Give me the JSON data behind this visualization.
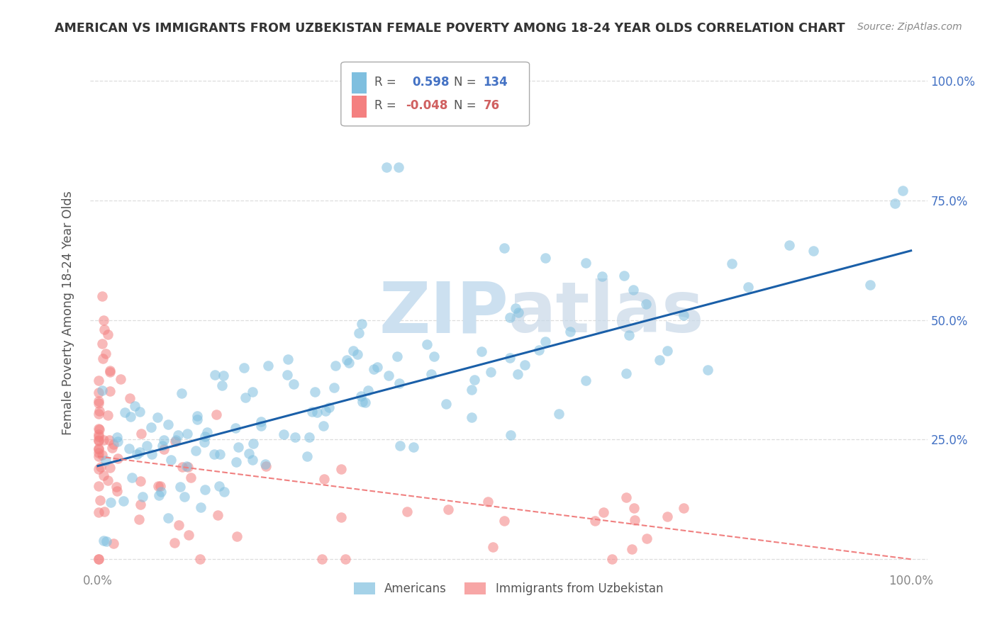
{
  "title": "AMERICAN VS IMMIGRANTS FROM UZBEKISTAN FEMALE POVERTY AMONG 18-24 YEAR OLDS CORRELATION CHART",
  "source": "Source: ZipAtlas.com",
  "ylabel": "Female Poverty Among 18-24 Year Olds",
  "xlim": [
    -0.01,
    1.02
  ],
  "ylim": [
    -0.02,
    1.05
  ],
  "xtick_vals": [
    0.0,
    0.25,
    0.5,
    0.75,
    1.0
  ],
  "xticklabels": [
    "0.0%",
    "",
    "",
    "",
    "100.0%"
  ],
  "ytick_vals": [
    0.0,
    0.25,
    0.5,
    0.75,
    1.0
  ],
  "yticklabels_right": [
    "",
    "25.0%",
    "50.0%",
    "75.0%",
    "100.0%"
  ],
  "americans_color": "#7fbfdf",
  "uzbekistan_color": "#f48080",
  "americans_R": 0.598,
  "americans_N": 134,
  "uzbekistan_R": -0.048,
  "uzbekistan_N": 76,
  "blue_line_color": "#1a5fa8",
  "pink_line_color": "#f08080",
  "watermark": "ZIPatlas",
  "watermark_color": "#ddeeff",
  "legend_labels": [
    "Americans",
    "Immigrants from Uzbekistan"
  ],
  "grid_color": "#dddddd",
  "title_color": "#333333",
  "source_color": "#888888",
  "ylabel_color": "#555555",
  "tick_color": "#4472c4",
  "xtick_color": "#888888",
  "legend_R_color": "#555555",
  "legend_val_color_blue": "#4472c4",
  "legend_val_color_pink": "#d06060",
  "blue_line_start_y": 0.195,
  "blue_line_end_y": 0.645,
  "pink_line_start_y": 0.215,
  "pink_line_end_y": 0.0,
  "seed": 12345
}
